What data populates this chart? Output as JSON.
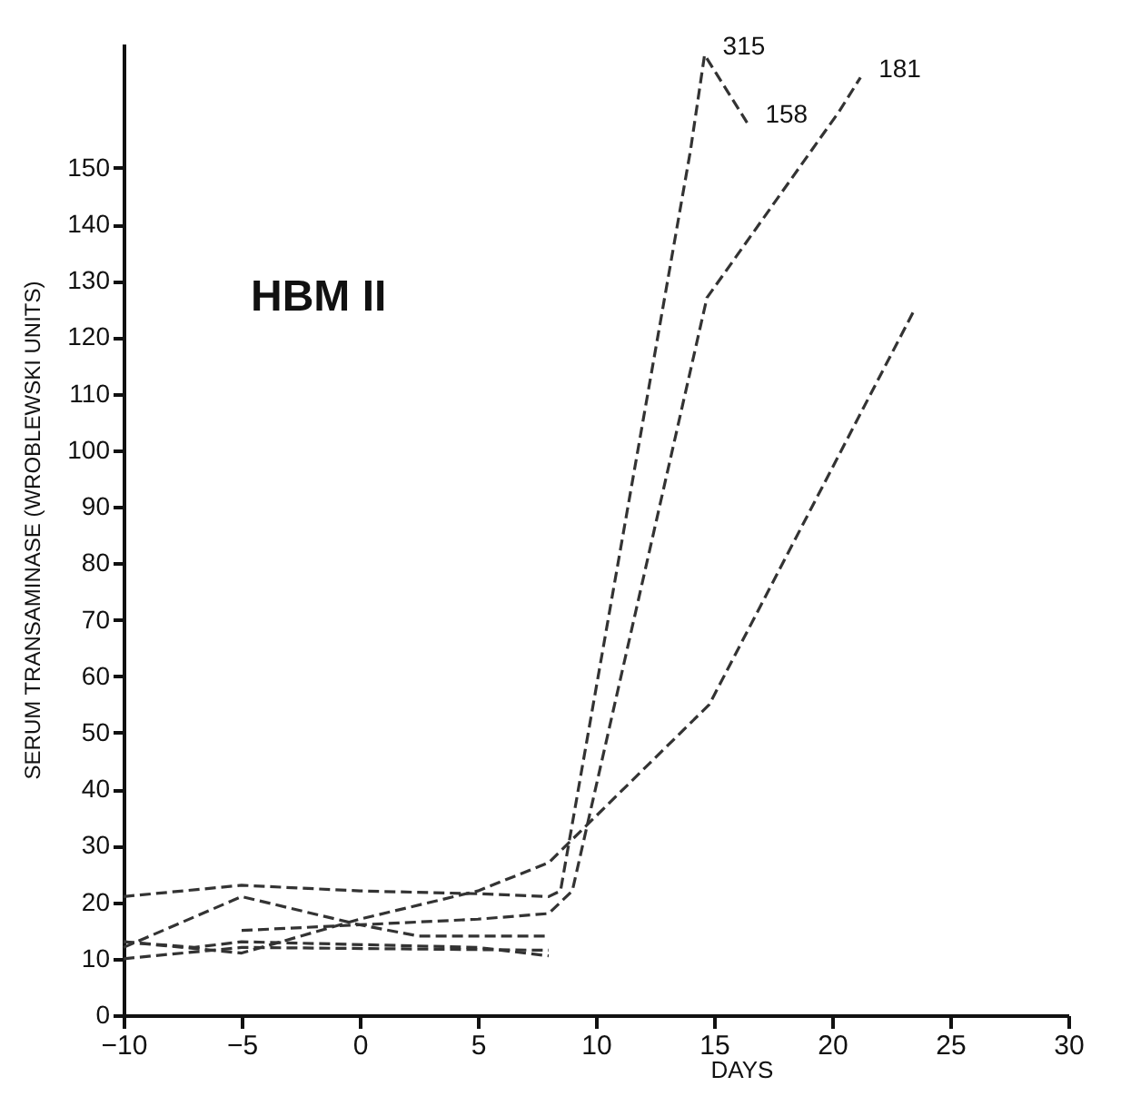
{
  "chart_data": {
    "type": "line",
    "title": "HBM II",
    "xlabel": "DAYS",
    "ylabel": "SERUM TRANSAMINASE (WROBLEWSKI UNITS)",
    "xlim": [
      -10,
      30
    ],
    "xticks": [
      -10,
      -5,
      0,
      5,
      10,
      15,
      20,
      25,
      30
    ],
    "ylim": [
      0,
      172
    ],
    "yticks": [
      0,
      10,
      20,
      30,
      40,
      50,
      60,
      70,
      80,
      90,
      100,
      110,
      120,
      130,
      140,
      150
    ],
    "grid": false,
    "marker": "none",
    "line_style": "dashed",
    "series": [
      {
        "color": "#333333",
        "x": [
          -10,
          -5,
          0,
          5,
          8,
          8.5,
          14,
          14.6,
          16.4
        ],
        "values": [
          21,
          23,
          22,
          21.5,
          21,
          22,
          153,
          170,
          158
        ]
      },
      {
        "color": "#333333",
        "x": [
          -5,
          0,
          5,
          8,
          9,
          14.7,
          20.3,
          21.2
        ],
        "values": [
          15,
          16,
          17,
          18,
          22,
          127,
          160,
          166
        ]
      },
      {
        "color": "#333333",
        "x": [
          -10,
          -5,
          0,
          5,
          8,
          14.8,
          23.5
        ],
        "values": [
          13,
          11,
          17,
          22,
          27,
          55,
          125
        ]
      },
      {
        "color": "#333333",
        "x": [
          -10,
          -5,
          0,
          2.5,
          8
        ],
        "values": [
          12,
          21,
          16,
          14,
          14
        ]
      },
      {
        "color": "#333333",
        "x": [
          -10,
          -5,
          8
        ],
        "values": [
          10,
          12,
          11.5
        ]
      },
      {
        "color": "#333333",
        "x": [
          -10,
          -7,
          -5,
          5,
          8
        ],
        "values": [
          13,
          12,
          13,
          12,
          10.5
        ]
      }
    ],
    "annotations": [
      {
        "text": "315",
        "x": 14.6,
        "y": 170
      },
      {
        "text": "158",
        "x": 16.4,
        "y": 158
      },
      {
        "text": "181",
        "x": 21.2,
        "y": 166
      }
    ]
  }
}
